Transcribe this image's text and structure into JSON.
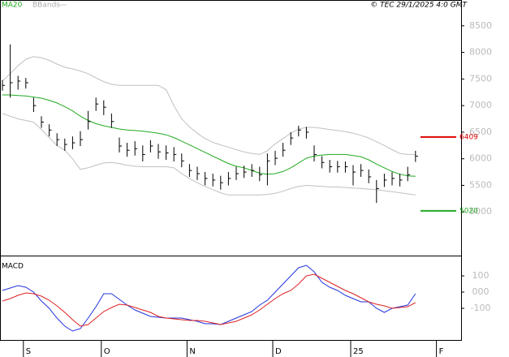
{
  "chart_data": [
    {
      "type": "ohlc",
      "source": "© TEC 29/1/2025 4:0 GMT",
      "categories": [
        null,
        null,
        null,
        "S",
        null,
        null,
        null,
        null,
        null,
        null,
        null,
        null,
        null,
        "O",
        null,
        null,
        null,
        null,
        null,
        null,
        null,
        null,
        null,
        null,
        "N",
        null,
        null,
        null,
        null,
        null,
        null,
        null,
        null,
        null,
        null,
        "D",
        null,
        null,
        null,
        null,
        null,
        null,
        null,
        null,
        null,
        "25",
        null,
        null,
        null,
        null,
        null,
        null,
        null,
        null,
        null,
        null,
        "F",
        null,
        null
      ],
      "high": [
        7480,
        8150,
        7560,
        7520,
        7150,
        6800,
        6650,
        6480,
        6380,
        6420,
        6520,
        6900,
        7150,
        7100,
        6850,
        6400,
        6300,
        6330,
        6250,
        6350,
        6280,
        6250,
        6220,
        6100,
        5900,
        5850,
        5750,
        5720,
        5680,
        5750,
        5850,
        5870,
        5900,
        5850,
        6100,
        6150,
        6300,
        6500,
        6620,
        6600,
        6250,
        6050,
        5980,
        5960,
        5950,
        5880,
        5900,
        5800,
        5600,
        5720,
        5750,
        5720,
        5850,
        6150,
        null,
        null,
        null,
        null,
        null
      ],
      "low": [
        7280,
        7150,
        7300,
        7320,
        6880,
        6580,
        6420,
        6240,
        6150,
        6180,
        6240,
        6550,
        6900,
        6820,
        6580,
        6120,
        6040,
        6060,
        5950,
        6120,
        6000,
        5980,
        5950,
        5840,
        5660,
        5600,
        5500,
        5480,
        5420,
        5500,
        5600,
        5640,
        5660,
        5580,
        5500,
        5880,
        6040,
        6260,
        6420,
        6380,
        5950,
        5820,
        5740,
        5740,
        5740,
        5500,
        5660,
        5540,
        5170,
        5470,
        5500,
        5480,
        5580,
        5940,
        null,
        null,
        null,
        null,
        null
      ],
      "close": [
        7380,
        7430,
        7460,
        7430,
        7000,
        6690,
        6540,
        6360,
        6270,
        6300,
        6360,
        6700,
        7030,
        6970,
        6700,
        6240,
        6160,
        6190,
        6080,
        6240,
        6130,
        6110,
        6080,
        5960,
        5780,
        5720,
        5630,
        5600,
        5550,
        5630,
        5720,
        5750,
        5780,
        5700,
        5960,
        6010,
        6160,
        6390,
        6540,
        6500,
        6080,
        5930,
        5850,
        5850,
        5850,
        5750,
        5780,
        5660,
        5440,
        5600,
        5630,
        5600,
        5700,
        6050,
        null,
        null,
        null,
        null,
        null
      ],
      "series": [
        {
          "name": "MA20",
          "color": "#22aa22",
          "values": [
            7200,
            7200,
            7190,
            7180,
            7160,
            7140,
            7100,
            7050,
            6980,
            6900,
            6800,
            6720,
            6660,
            6620,
            6590,
            6560,
            6540,
            6530,
            6520,
            6500,
            6480,
            6450,
            6400,
            6330,
            6260,
            6190,
            6120,
            6050,
            5980,
            5910,
            5860,
            5830,
            5780,
            5730,
            5710,
            5720,
            5760,
            5830,
            5920,
            6010,
            6050,
            6070,
            6080,
            6080,
            6080,
            6060,
            6040,
            5980,
            5900,
            5830,
            5760,
            5710,
            5680,
            5670,
            null,
            null,
            null,
            null,
            null
          ]
        },
        {
          "name": "BBands",
          "color": "#c0c0c0",
          "values": [
            7460,
            7600,
            7750,
            7870,
            7920,
            7900,
            7850,
            7780,
            7720,
            7690,
            7650,
            7600,
            7520,
            7450,
            7400,
            7380,
            7380,
            7380,
            7380,
            7380,
            7380,
            7300,
            7000,
            6750,
            6600,
            6480,
            6380,
            6310,
            6260,
            6220,
            6170,
            6130,
            6100,
            6080,
            6150,
            6280,
            6380,
            6480,
            6560,
            6590,
            6590,
            6570,
            6550,
            6530,
            6510,
            6480,
            6440,
            6390,
            6320,
            6250,
            6170,
            6100,
            6080,
            6080,
            null,
            null,
            null,
            null,
            null
          ]
        },
        {
          "color": "#c0c0c0",
          "values": [
            6850,
            6800,
            6750,
            6720,
            6690,
            6550,
            6400,
            6250,
            6160,
            6000,
            5800,
            5830,
            5880,
            5920,
            5930,
            5910,
            5880,
            5860,
            5850,
            5850,
            5850,
            5850,
            5830,
            5720,
            5630,
            5550,
            5480,
            5420,
            5360,
            5320,
            5320,
            5320,
            5320,
            5320,
            5330,
            5350,
            5390,
            5440,
            5480,
            5500,
            5490,
            5480,
            5470,
            5470,
            5460,
            5450,
            5440,
            5430,
            5420,
            5400,
            5380,
            5360,
            5340,
            5320,
            null,
            null,
            null,
            null,
            null
          ]
        }
      ],
      "levels": [
        {
          "value": 6409,
          "color": "#dd0000"
        },
        {
          "value": 5020,
          "color": "#22aa22"
        }
      ],
      "ylim": [
        4180,
        8985
      ],
      "yticks": [
        5000,
        5500,
        6000,
        6500,
        7000,
        7500,
        8000,
        8500
      ]
    },
    {
      "type": "line",
      "title": "MACD",
      "series": [
        {
          "color": "#2233dd",
          "values": [
            10,
            25,
            40,
            30,
            0,
            -55,
            -100,
            -160,
            -210,
            -240,
            -225,
            -160,
            -90,
            -10,
            -10,
            -45,
            -80,
            -110,
            -130,
            -150,
            -155,
            -160,
            -160,
            -160,
            -170,
            -180,
            -195,
            -195,
            -200,
            -180,
            -160,
            -140,
            -120,
            -80,
            -50,
            0,
            50,
            100,
            150,
            165,
            125,
            60,
            30,
            10,
            -20,
            -40,
            -60,
            -60,
            -100,
            -125,
            -100,
            -90,
            -80,
            -10,
            null,
            null,
            null,
            null,
            null
          ]
        },
        {
          "color": "#dd2222",
          "values": [
            -55,
            -40,
            -20,
            -5,
            -10,
            -25,
            -50,
            -85,
            -125,
            -170,
            -210,
            -200,
            -160,
            -120,
            -95,
            -75,
            -80,
            -95,
            -110,
            -125,
            -150,
            -160,
            -165,
            -170,
            -175,
            -175,
            -180,
            -190,
            -200,
            -190,
            -180,
            -160,
            -140,
            -110,
            -75,
            -40,
            -10,
            10,
            50,
            100,
            110,
            85,
            60,
            35,
            10,
            -10,
            -35,
            -60,
            -75,
            -85,
            -100,
            -95,
            -90,
            -65,
            null,
            null,
            null,
            null,
            null
          ]
        }
      ],
      "ylim": [
        -300,
        210
      ],
      "yticks": [
        {
          "value": 100,
          "label": "100"
        },
        {
          "value": 0,
          "label": "000"
        },
        {
          "value": -100,
          "label": "-100"
        }
      ]
    }
  ]
}
